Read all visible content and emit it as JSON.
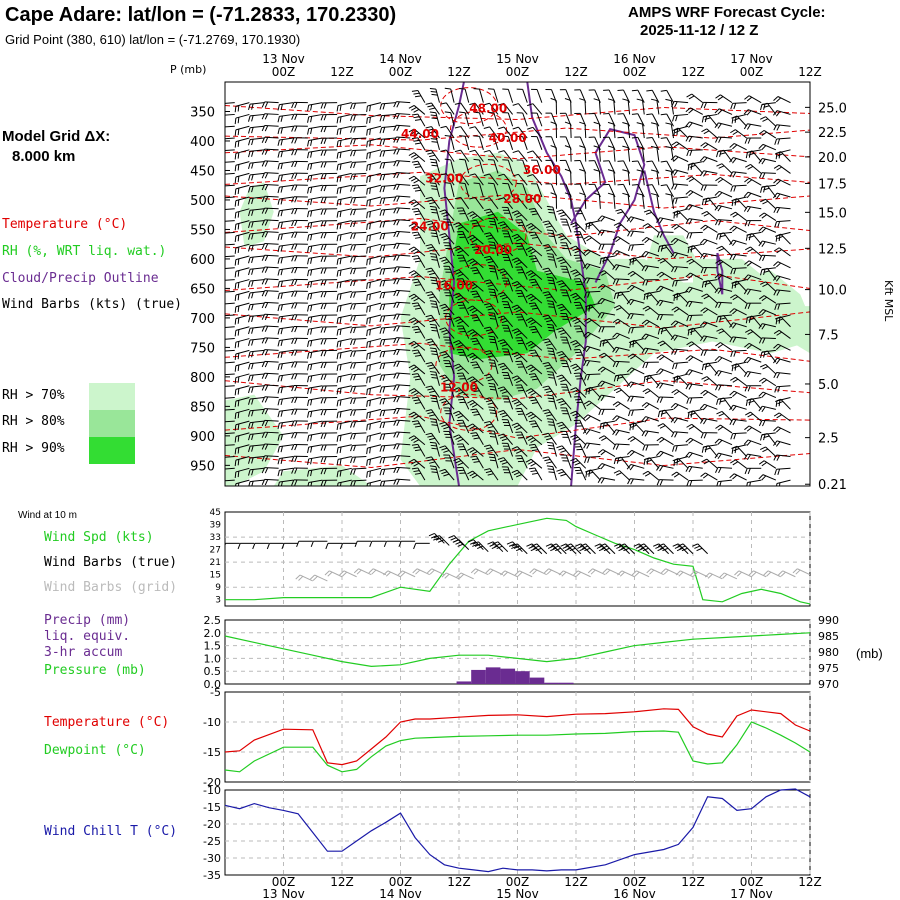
{
  "header": {
    "title": "Cape Adare:  lat/lon = (-71.2833, 170.2330)",
    "subtitle": "Grid Point (380, 610) lat/lon = (-71.2769, 170.1930)",
    "cycle_label": "AMPS WRF Forecast Cycle:",
    "cycle_value": "2025-11-12 / 12  Z"
  },
  "left_panel": {
    "model_grid_label": "Model Grid ΔX:",
    "model_grid_value": "8.000 km",
    "legend_temperature": "Temperature (°C)",
    "legend_rh": "RH (%, WRT liq. wat.)",
    "legend_cloud": "Cloud/Precip Outline",
    "legend_wind": "Wind Barbs (kts) (true)",
    "rh_70": "RH > 70%",
    "rh_80": "RH > 80%",
    "rh_90": "RH > 90%"
  },
  "panel_labels": {
    "wind10m": "Wind at 10 m",
    "wind_spd": "Wind Spd (kts)",
    "wind_barbs_true": "Wind Barbs (true)",
    "wind_barbs_grid": "Wind Barbs (grid)",
    "precip_1": "Precip (mm)",
    "precip_2": "liq. equiv.",
    "precip_3": "3-hr accum",
    "pressure": "Pressure (mb)",
    "pressure_unit": "(mb)",
    "temperature": "Temperature (°C)",
    "dewpoint": "Dewpoint (°C)",
    "wind_chill": "Wind Chill T (°C)",
    "p_axis": "P (mb)",
    "kft_axis": "Kft MSL"
  },
  "colors": {
    "temperature": "#e00000",
    "rh_green": "#22cc22",
    "cloud": "#6a2c91",
    "wind_chill": "#1a1aa8",
    "rh70": "#ccf5cc",
    "rh80": "#99e699",
    "rh90": "#33dd33",
    "grid_barbs": "#aaaaaa"
  },
  "time_axis": {
    "hour_labels": [
      "00Z",
      "12Z",
      "00Z",
      "12Z",
      "00Z",
      "12Z",
      "00Z",
      "12Z",
      "00Z",
      "12Z"
    ],
    "hours": [
      12,
      24,
      36,
      48,
      60,
      72,
      84,
      96,
      108,
      120
    ],
    "day_labels": [
      "13 Nov",
      "14 Nov",
      "15 Nov",
      "16 Nov",
      "17 Nov"
    ],
    "day_hours": [
      12,
      36,
      60,
      84,
      108
    ],
    "range_hours": [
      0,
      120
    ]
  },
  "chart_data": [
    {
      "type": "heatmap",
      "name": "cross-section",
      "y_pressure_ticks": [
        350,
        400,
        450,
        500,
        550,
        600,
        650,
        700,
        750,
        800,
        850,
        900,
        950
      ],
      "y_height_ticks": [
        "25.0",
        "22.5",
        "20.0",
        "17.5",
        "15.0",
        "12.5",
        "10.0",
        "7.5",
        "5.0",
        "2.5",
        "0.21"
      ],
      "y_height_pressures": [
        343,
        385,
        427,
        472,
        521,
        582,
        652,
        728,
        812,
        903,
        982
      ],
      "ylim_mb": [
        300,
        985
      ],
      "temperature_contour_labels": [
        {
          "text": "48.00",
          "t": 54,
          "p": 352
        },
        {
          "text": "44.00",
          "t": 40,
          "p": 395
        },
        {
          "text": "40.00",
          "t": 58,
          "p": 402
        },
        {
          "text": "36.00",
          "t": 65,
          "p": 456
        },
        {
          "text": "32.00",
          "t": 45,
          "p": 470
        },
        {
          "text": "28.00",
          "t": 61,
          "p": 505
        },
        {
          "text": "24.00",
          "t": 42,
          "p": 552
        },
        {
          "text": "20.00",
          "t": 55,
          "p": 592
        },
        {
          "text": "16.00",
          "t": 47,
          "p": 652
        },
        {
          "text": "12.00",
          "t": 48,
          "p": 825
        }
      ]
    },
    {
      "type": "line",
      "name": "wind-10m",
      "y_ticks": [
        3,
        9,
        15,
        21,
        27,
        33,
        39,
        45
      ],
      "ylim": [
        0,
        45
      ],
      "series": [
        {
          "name": "Wind Spd (kts)",
          "x": [
            0,
            6,
            12,
            18,
            24,
            30,
            36,
            42,
            46,
            50,
            54,
            58,
            62,
            66,
            70,
            72,
            76,
            80,
            84,
            88,
            92,
            96,
            98,
            102,
            106,
            110,
            114,
            118,
            120
          ],
          "y": [
            3,
            3,
            4,
            4,
            4,
            4,
            9,
            7,
            20,
            31,
            36,
            38,
            40,
            42,
            41,
            38,
            34,
            30,
            27,
            23,
            20,
            19,
            3,
            2,
            6,
            8,
            6,
            2,
            1
          ]
        },
        {
          "name": "Wind Barbs (true)",
          "x": [
            0,
            6,
            12,
            18,
            24,
            30,
            36,
            42,
            46,
            50,
            54,
            58,
            62,
            66,
            70,
            72,
            76,
            80,
            84,
            88,
            92,
            96
          ],
          "y": [
            30,
            30,
            30,
            31,
            30,
            31,
            31,
            30,
            29,
            27,
            26,
            26,
            25,
            25,
            25,
            25,
            25,
            25,
            25,
            25,
            25,
            25
          ]
        },
        {
          "name": "Wind Barbs (grid)",
          "x": [
            18,
            24,
            30,
            36,
            42,
            48,
            54,
            60,
            66,
            72,
            78,
            84,
            90,
            96,
            102,
            108,
            114,
            120
          ],
          "y": [
            12,
            14,
            15,
            14,
            15,
            13,
            15,
            14,
            15,
            14,
            15,
            14,
            15,
            14,
            13,
            14,
            14,
            15
          ]
        }
      ]
    },
    {
      "type": "bar",
      "name": "precip-pressure",
      "y_left_ticks": [
        "0.0",
        "0.5",
        "1.0",
        "1.5",
        "2.0",
        "2.5"
      ],
      "y_right_ticks": [
        970,
        975,
        980,
        985,
        990
      ],
      "ylim_left": [
        0,
        2.5
      ],
      "ylim_right": [
        970,
        990
      ],
      "precip": {
        "x": [
          49,
          52,
          55,
          58,
          61,
          64,
          67,
          70
        ],
        "values": [
          0.1,
          0.55,
          0.65,
          0.6,
          0.5,
          0.25,
          0.05,
          0.05
        ]
      },
      "series": [
        {
          "name": "Pressure (mb)",
          "x": [
            0,
            6,
            12,
            18,
            24,
            30,
            36,
            42,
            48,
            54,
            60,
            66,
            72,
            78,
            84,
            90,
            96,
            102,
            108,
            114,
            120
          ],
          "y": [
            985,
            983,
            981,
            979,
            977,
            975.5,
            976,
            978,
            979,
            979,
            978,
            977,
            978,
            980,
            982,
            983,
            984,
            984.5,
            985,
            985.5,
            986
          ]
        }
      ]
    },
    {
      "type": "line",
      "name": "temperature-dewpoint",
      "y_ticks": [
        -5,
        -10,
        -15,
        -20
      ],
      "ylim": [
        -20,
        -5
      ],
      "series": [
        {
          "name": "Temperature (°C)",
          "x": [
            0,
            3,
            6,
            12,
            18,
            21,
            24,
            27,
            30,
            33,
            36,
            39,
            42,
            48,
            54,
            60,
            66,
            72,
            78,
            84,
            90,
            93,
            96,
            99,
            102,
            105,
            108,
            111,
            114,
            117,
            120
          ],
          "y": [
            -15,
            -14.8,
            -13,
            -11.2,
            -11.3,
            -16.8,
            -17.1,
            -16.5,
            -14.5,
            -12.5,
            -10,
            -9.5,
            -9.5,
            -9.2,
            -8.9,
            -8.8,
            -9.1,
            -8.7,
            -8.6,
            -8.3,
            -7.8,
            -7.9,
            -10.8,
            -12,
            -12.5,
            -9,
            -8,
            -8.3,
            -8.6,
            -10.5,
            -11.5
          ]
        },
        {
          "name": "Dewpoint (°C)",
          "x": [
            0,
            3,
            6,
            12,
            18,
            21,
            24,
            27,
            30,
            33,
            36,
            39,
            42,
            48,
            54,
            60,
            66,
            72,
            78,
            84,
            90,
            93,
            96,
            99,
            102,
            105,
            108,
            111,
            114,
            117,
            120
          ],
          "y": [
            -18,
            -18.3,
            -16.5,
            -14.2,
            -14.2,
            -17.2,
            -18.3,
            -17.9,
            -15.8,
            -14,
            -13.1,
            -12.7,
            -12.6,
            -12.4,
            -12.3,
            -12.2,
            -12.2,
            -12,
            -11.9,
            -11.6,
            -11.5,
            -11.7,
            -16.5,
            -17,
            -16.8,
            -13.8,
            -10,
            -11,
            -12.2,
            -13.5,
            -15
          ]
        }
      ]
    },
    {
      "type": "line",
      "name": "wind-chill",
      "y_ticks": [
        -10,
        -15,
        -20,
        -25,
        -30,
        -35
      ],
      "ylim": [
        -35,
        -10
      ],
      "series": [
        {
          "name": "Wind Chill T (°C)",
          "x": [
            0,
            3,
            6,
            9,
            12,
            15,
            18,
            21,
            24,
            27,
            30,
            33,
            36,
            39,
            42,
            45,
            48,
            51,
            54,
            57,
            60,
            63,
            66,
            69,
            72,
            78,
            84,
            90,
            93,
            96,
            99,
            102,
            105,
            108,
            111,
            114,
            117,
            120
          ],
          "y": [
            -14.5,
            -15.5,
            -14,
            -15.2,
            -16,
            -17,
            -22.5,
            -28,
            -28,
            -25,
            -22,
            -19.5,
            -16.8,
            -24,
            -29,
            -32,
            -33,
            -33.5,
            -34,
            -33,
            -33.5,
            -33.5,
            -33.8,
            -33.5,
            -33.5,
            -32,
            -29,
            -27.5,
            -26,
            -21,
            -12,
            -12.5,
            -16,
            -15.5,
            -12,
            -10,
            -9.7,
            -12
          ]
        }
      ]
    }
  ]
}
